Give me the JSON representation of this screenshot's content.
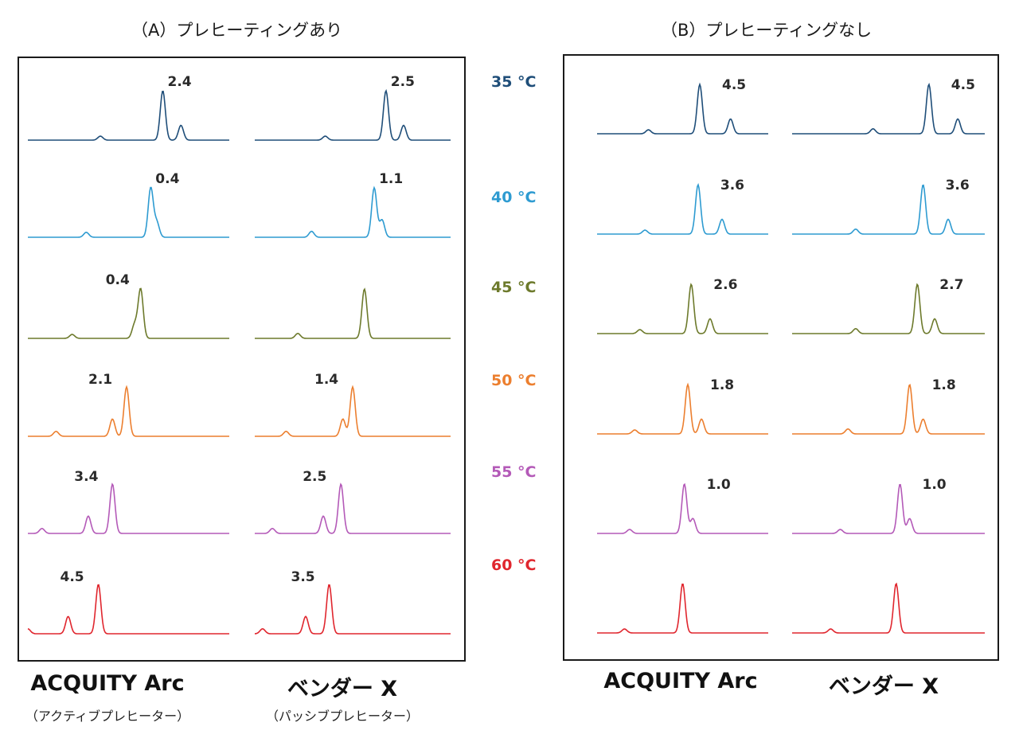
{
  "panels": [
    {
      "id": "A",
      "title": "（A）プレヒーティングあり"
    },
    {
      "id": "B",
      "title": "（B）プレヒーティングなし"
    }
  ],
  "columns": {
    "A": [
      {
        "label": "ACQUITY Arc",
        "sub": "（アクティブプレヒーター）"
      },
      {
        "label": "ベンダー X",
        "sub": "（パッシブプレヒーター）"
      }
    ],
    "B": [
      {
        "label": "ACQUITY Arc",
        "sub": ""
      },
      {
        "label": "ベンダー X",
        "sub": ""
      }
    ]
  },
  "temperatures": [
    {
      "label": "35 °C",
      "color": "#1f4e79"
    },
    {
      "label": "40 °C",
      "color": "#2e9bd1"
    },
    {
      "label": "45 °C",
      "color": "#6d7a2c"
    },
    {
      "label": "50 °C",
      "color": "#ec7f2f"
    },
    {
      "label": "55 °C",
      "color": "#b45ab8"
    },
    {
      "label": "60 °C",
      "color": "#e0262e"
    }
  ],
  "chart_data": {
    "type": "line",
    "description_units": "chromatogram traces; peaks positioned in relative retention units (0-1 across trace), heights relative (0-1)",
    "traces": {
      "A": [
        [
          {
            "resolution": "2.4",
            "peaks": [
              [
                0.36,
                0.08
              ],
              [
                0.67,
                1.0
              ],
              [
                0.76,
                0.3
              ]
            ]
          },
          {
            "resolution": "2.5",
            "peaks": [
              [
                0.36,
                0.08
              ],
              [
                0.67,
                1.0
              ],
              [
                0.76,
                0.3
              ]
            ]
          }
        ],
        [
          {
            "resolution": "0.4",
            "peaks": [
              [
                0.29,
                0.1
              ],
              [
                0.61,
                1.0
              ],
              [
                0.64,
                0.3
              ]
            ]
          },
          {
            "resolution": "1.1",
            "peaks": [
              [
                0.29,
                0.12
              ],
              [
                0.61,
                1.0
              ],
              [
                0.65,
                0.35
              ]
            ]
          }
        ],
        [
          {
            "resolution": "0.4",
            "peaks": [
              [
                0.22,
                0.08
              ],
              [
                0.53,
                0.28
              ],
              [
                0.56,
                1.0
              ]
            ]
          },
          {
            "resolution": "",
            "peaks": [
              [
                0.22,
                0.1
              ],
              [
                0.56,
                1.0
              ]
            ]
          }
        ],
        [
          {
            "resolution": "2.1",
            "peaks": [
              [
                0.14,
                0.1
              ],
              [
                0.42,
                0.35
              ],
              [
                0.49,
                1.0
              ]
            ]
          },
          {
            "resolution": "1.4",
            "peaks": [
              [
                0.16,
                0.1
              ],
              [
                0.45,
                0.35
              ],
              [
                0.5,
                1.0
              ]
            ]
          }
        ],
        [
          {
            "resolution": "3.4",
            "peaks": [
              [
                0.07,
                0.1
              ],
              [
                0.3,
                0.35
              ],
              [
                0.42,
                1.0
              ]
            ]
          },
          {
            "resolution": "2.5",
            "peaks": [
              [
                0.09,
                0.1
              ],
              [
                0.35,
                0.35
              ],
              [
                0.44,
                1.0
              ]
            ]
          }
        ],
        [
          {
            "resolution": "4.5",
            "peaks": [
              [
                0.0,
                0.1
              ],
              [
                0.2,
                0.35
              ],
              [
                0.35,
                1.0
              ]
            ]
          },
          {
            "resolution": "3.5",
            "peaks": [
              [
                0.04,
                0.1
              ],
              [
                0.26,
                0.35
              ],
              [
                0.38,
                1.0
              ]
            ]
          }
        ]
      ],
      "B": [
        [
          {
            "resolution": "4.5",
            "peaks": [
              [
                0.3,
                0.08
              ],
              [
                0.6,
                1.0
              ],
              [
                0.78,
                0.3
              ]
            ]
          },
          {
            "resolution": "4.5",
            "peaks": [
              [
                0.42,
                0.1
              ],
              [
                0.71,
                1.0
              ],
              [
                0.86,
                0.3
              ]
            ]
          }
        ],
        [
          {
            "resolution": "3.6",
            "peaks": [
              [
                0.28,
                0.08
              ],
              [
                0.59,
                1.0
              ],
              [
                0.73,
                0.3
              ]
            ]
          },
          {
            "resolution": "3.6",
            "peaks": [
              [
                0.33,
                0.1
              ],
              [
                0.68,
                1.0
              ],
              [
                0.81,
                0.3
              ]
            ]
          }
        ],
        [
          {
            "resolution": "2.6",
            "peaks": [
              [
                0.25,
                0.08
              ],
              [
                0.55,
                1.0
              ],
              [
                0.66,
                0.3
              ]
            ]
          },
          {
            "resolution": "2.7",
            "peaks": [
              [
                0.33,
                0.1
              ],
              [
                0.65,
                1.0
              ],
              [
                0.74,
                0.3
              ]
            ]
          }
        ],
        [
          {
            "resolution": "1.8",
            "peaks": [
              [
                0.22,
                0.08
              ],
              [
                0.53,
                1.0
              ],
              [
                0.61,
                0.3
              ]
            ]
          },
          {
            "resolution": "1.8",
            "peaks": [
              [
                0.29,
                0.1
              ],
              [
                0.61,
                1.0
              ],
              [
                0.68,
                0.3
              ]
            ]
          }
        ],
        [
          {
            "resolution": "1.0",
            "peaks": [
              [
                0.19,
                0.08
              ],
              [
                0.51,
                1.0
              ],
              [
                0.56,
                0.3
              ]
            ]
          },
          {
            "resolution": "1.0",
            "peaks": [
              [
                0.25,
                0.08
              ],
              [
                0.56,
                1.0
              ],
              [
                0.61,
                0.3
              ]
            ]
          }
        ],
        [
          {
            "resolution": "",
            "peaks": [
              [
                0.16,
                0.08
              ],
              [
                0.5,
                1.0
              ]
            ]
          },
          {
            "resolution": "",
            "peaks": [
              [
                0.2,
                0.08
              ],
              [
                0.54,
                1.0
              ]
            ]
          }
        ]
      ]
    }
  }
}
